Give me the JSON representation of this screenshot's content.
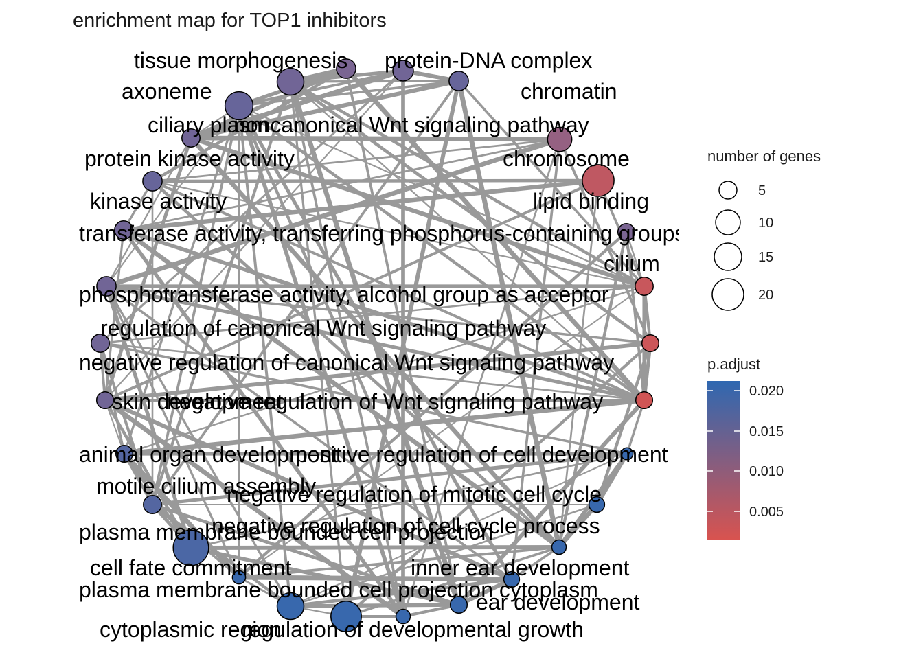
{
  "title": "enrichment map for TOP1 inhibitors",
  "nodes": [
    {
      "label": "tissue morphogenesis",
      "p": 0.014,
      "size": 15
    },
    {
      "label": "protein-DNA complex",
      "p": 0.014,
      "size": 10
    },
    {
      "label": "chromatin",
      "p": 0.015,
      "size": 9
    },
    {
      "label": "axoneme",
      "p": 0.015,
      "size": 16
    },
    {
      "label": "ciliary plasm",
      "p": 0.014,
      "size": 8
    },
    {
      "label": "noncanonical Wnt signaling pathway",
      "p": 0.013,
      "size": 9
    },
    {
      "label": "chromosome",
      "p": 0.01,
      "size": 13
    },
    {
      "label": "protein kinase activity",
      "p": 0.015,
      "size": 9
    },
    {
      "label": "kinase activity",
      "p": 0.014,
      "size": 8
    },
    {
      "label": "lipid binding",
      "p": 0.005,
      "size": 19
    },
    {
      "label": "transferase activity, transferring phosphorus-containing groups",
      "p": 0.013,
      "size": 7
    },
    {
      "label": "cilium",
      "p": 0.004,
      "size": 8
    },
    {
      "label": "phosphotransferase activity, alcohol group as acceptor",
      "p": 0.014,
      "size": 9
    },
    {
      "label": "regulation of canonical Wnt signaling pathway",
      "p": 0.014,
      "size": 8
    },
    {
      "label": "negative regulation of canonical Wnt signaling pathway",
      "p": 0.0035,
      "size": 7
    },
    {
      "label": "skin development",
      "p": 0.014,
      "size": 7
    },
    {
      "label": "negative regulation of Wnt signaling pathway",
      "p": 0.003,
      "size": 7
    },
    {
      "label": "animal organ development",
      "p": 0.017,
      "size": 7
    },
    {
      "label": "positive regulation of cell development",
      "p": 0.02,
      "size": 3
    },
    {
      "label": "motile cilium assembly",
      "p": 0.017,
      "size": 8
    },
    {
      "label": "negative regulation of mitotic cell cycle",
      "p": 0.02,
      "size": 6
    },
    {
      "label": "plasma membrane bounded cell projection",
      "p": 0.018,
      "size": 22
    },
    {
      "label": "negative regulation of cell cycle process",
      "p": 0.02,
      "size": 5
    },
    {
      "label": "cell fate commitment",
      "p": 0.02,
      "size": 4
    },
    {
      "label": "inner ear development",
      "p": 0.02,
      "size": 6
    },
    {
      "label": "plasma membrane bounded cell projection cytoplasm",
      "p": 0.02,
      "size": 15
    },
    {
      "label": "ear development",
      "p": 0.02,
      "size": 7
    },
    {
      "label": "cytoplasmic region",
      "p": 0.02,
      "size": 18
    },
    {
      "label": "regulation of developmental growth",
      "p": 0.02,
      "size": 5
    }
  ],
  "legend": {
    "size_title": "number of genes",
    "size_values": [
      "5",
      "10",
      "15",
      "20"
    ],
    "color_title": "p.adjust",
    "color_ticks": [
      "0.020",
      "0.015",
      "0.010",
      "0.005"
    ],
    "color_low": "#d9534f",
    "color_high": "#2f68b1"
  }
}
